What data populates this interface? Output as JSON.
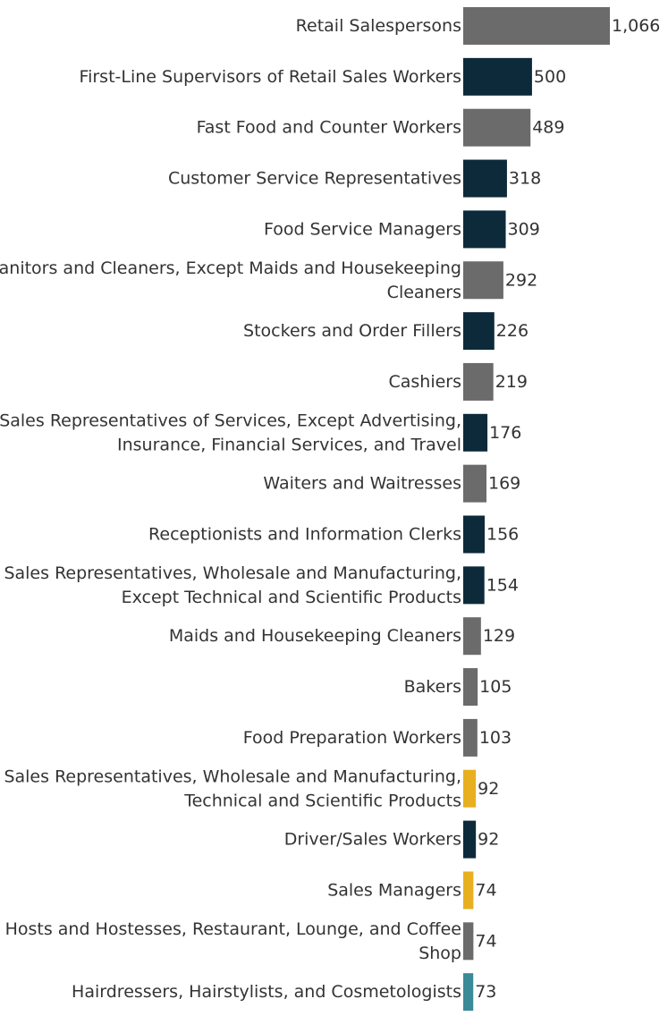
{
  "chart_data": {
    "type": "bar",
    "orientation": "horizontal",
    "title": "",
    "xlabel": "",
    "ylabel": "",
    "grid": false,
    "legend": "none",
    "xlim": [
      0,
      1066
    ],
    "categories": [
      [
        "Retail Salespersons"
      ],
      [
        "First-Line Supervisors of Retail Sales Workers"
      ],
      [
        "Fast Food and Counter Workers"
      ],
      [
        "Customer Service Representatives"
      ],
      [
        "Food Service Managers"
      ],
      [
        "Janitors and Cleaners, Except Maids and Housekeeping",
        "Cleaners"
      ],
      [
        "Stockers and Order Fillers"
      ],
      [
        "Cashiers"
      ],
      [
        "Sales Representatives of Services, Except Advertising,",
        "Insurance, Financial Services, and Travel"
      ],
      [
        "Waiters and Waitresses"
      ],
      [
        "Receptionists and Information Clerks"
      ],
      [
        "Sales Representatives, Wholesale and Manufacturing,",
        "Except Technical and Scientific Products"
      ],
      [
        "Maids and Housekeeping Cleaners"
      ],
      [
        "Bakers"
      ],
      [
        "Food Preparation Workers"
      ],
      [
        "Sales Representatives, Wholesale and Manufacturing,",
        "Technical and Scientific Products"
      ],
      [
        "Driver/Sales Workers"
      ],
      [
        "Sales Managers"
      ],
      [
        "Hosts and Hostesses, Restaurant, Lounge, and Coffee",
        "Shop"
      ],
      [
        "Hairdressers, Hairstylists, and Cosmetologists"
      ]
    ],
    "values": [
      1066,
      500,
      489,
      318,
      309,
      292,
      226,
      219,
      176,
      169,
      156,
      154,
      129,
      105,
      103,
      92,
      92,
      74,
      74,
      73
    ],
    "value_labels": [
      "1,066",
      "500",
      "489",
      "318",
      "309",
      "292",
      "226",
      "219",
      "176",
      "169",
      "156",
      "154",
      "129",
      "105",
      "103",
      "92",
      "92",
      "74",
      "74",
      "73"
    ],
    "color_keys": [
      "gray",
      "navy",
      "gray",
      "navy",
      "navy",
      "gray",
      "navy",
      "gray",
      "navy",
      "gray",
      "navy",
      "navy",
      "gray",
      "gray",
      "gray",
      "gold",
      "navy",
      "gold",
      "gray",
      "teal"
    ],
    "colors": {
      "gray": "#6b6b6b",
      "navy": "#0c2a3a",
      "gold": "#e8b020",
      "teal": "#3a8a98"
    }
  }
}
